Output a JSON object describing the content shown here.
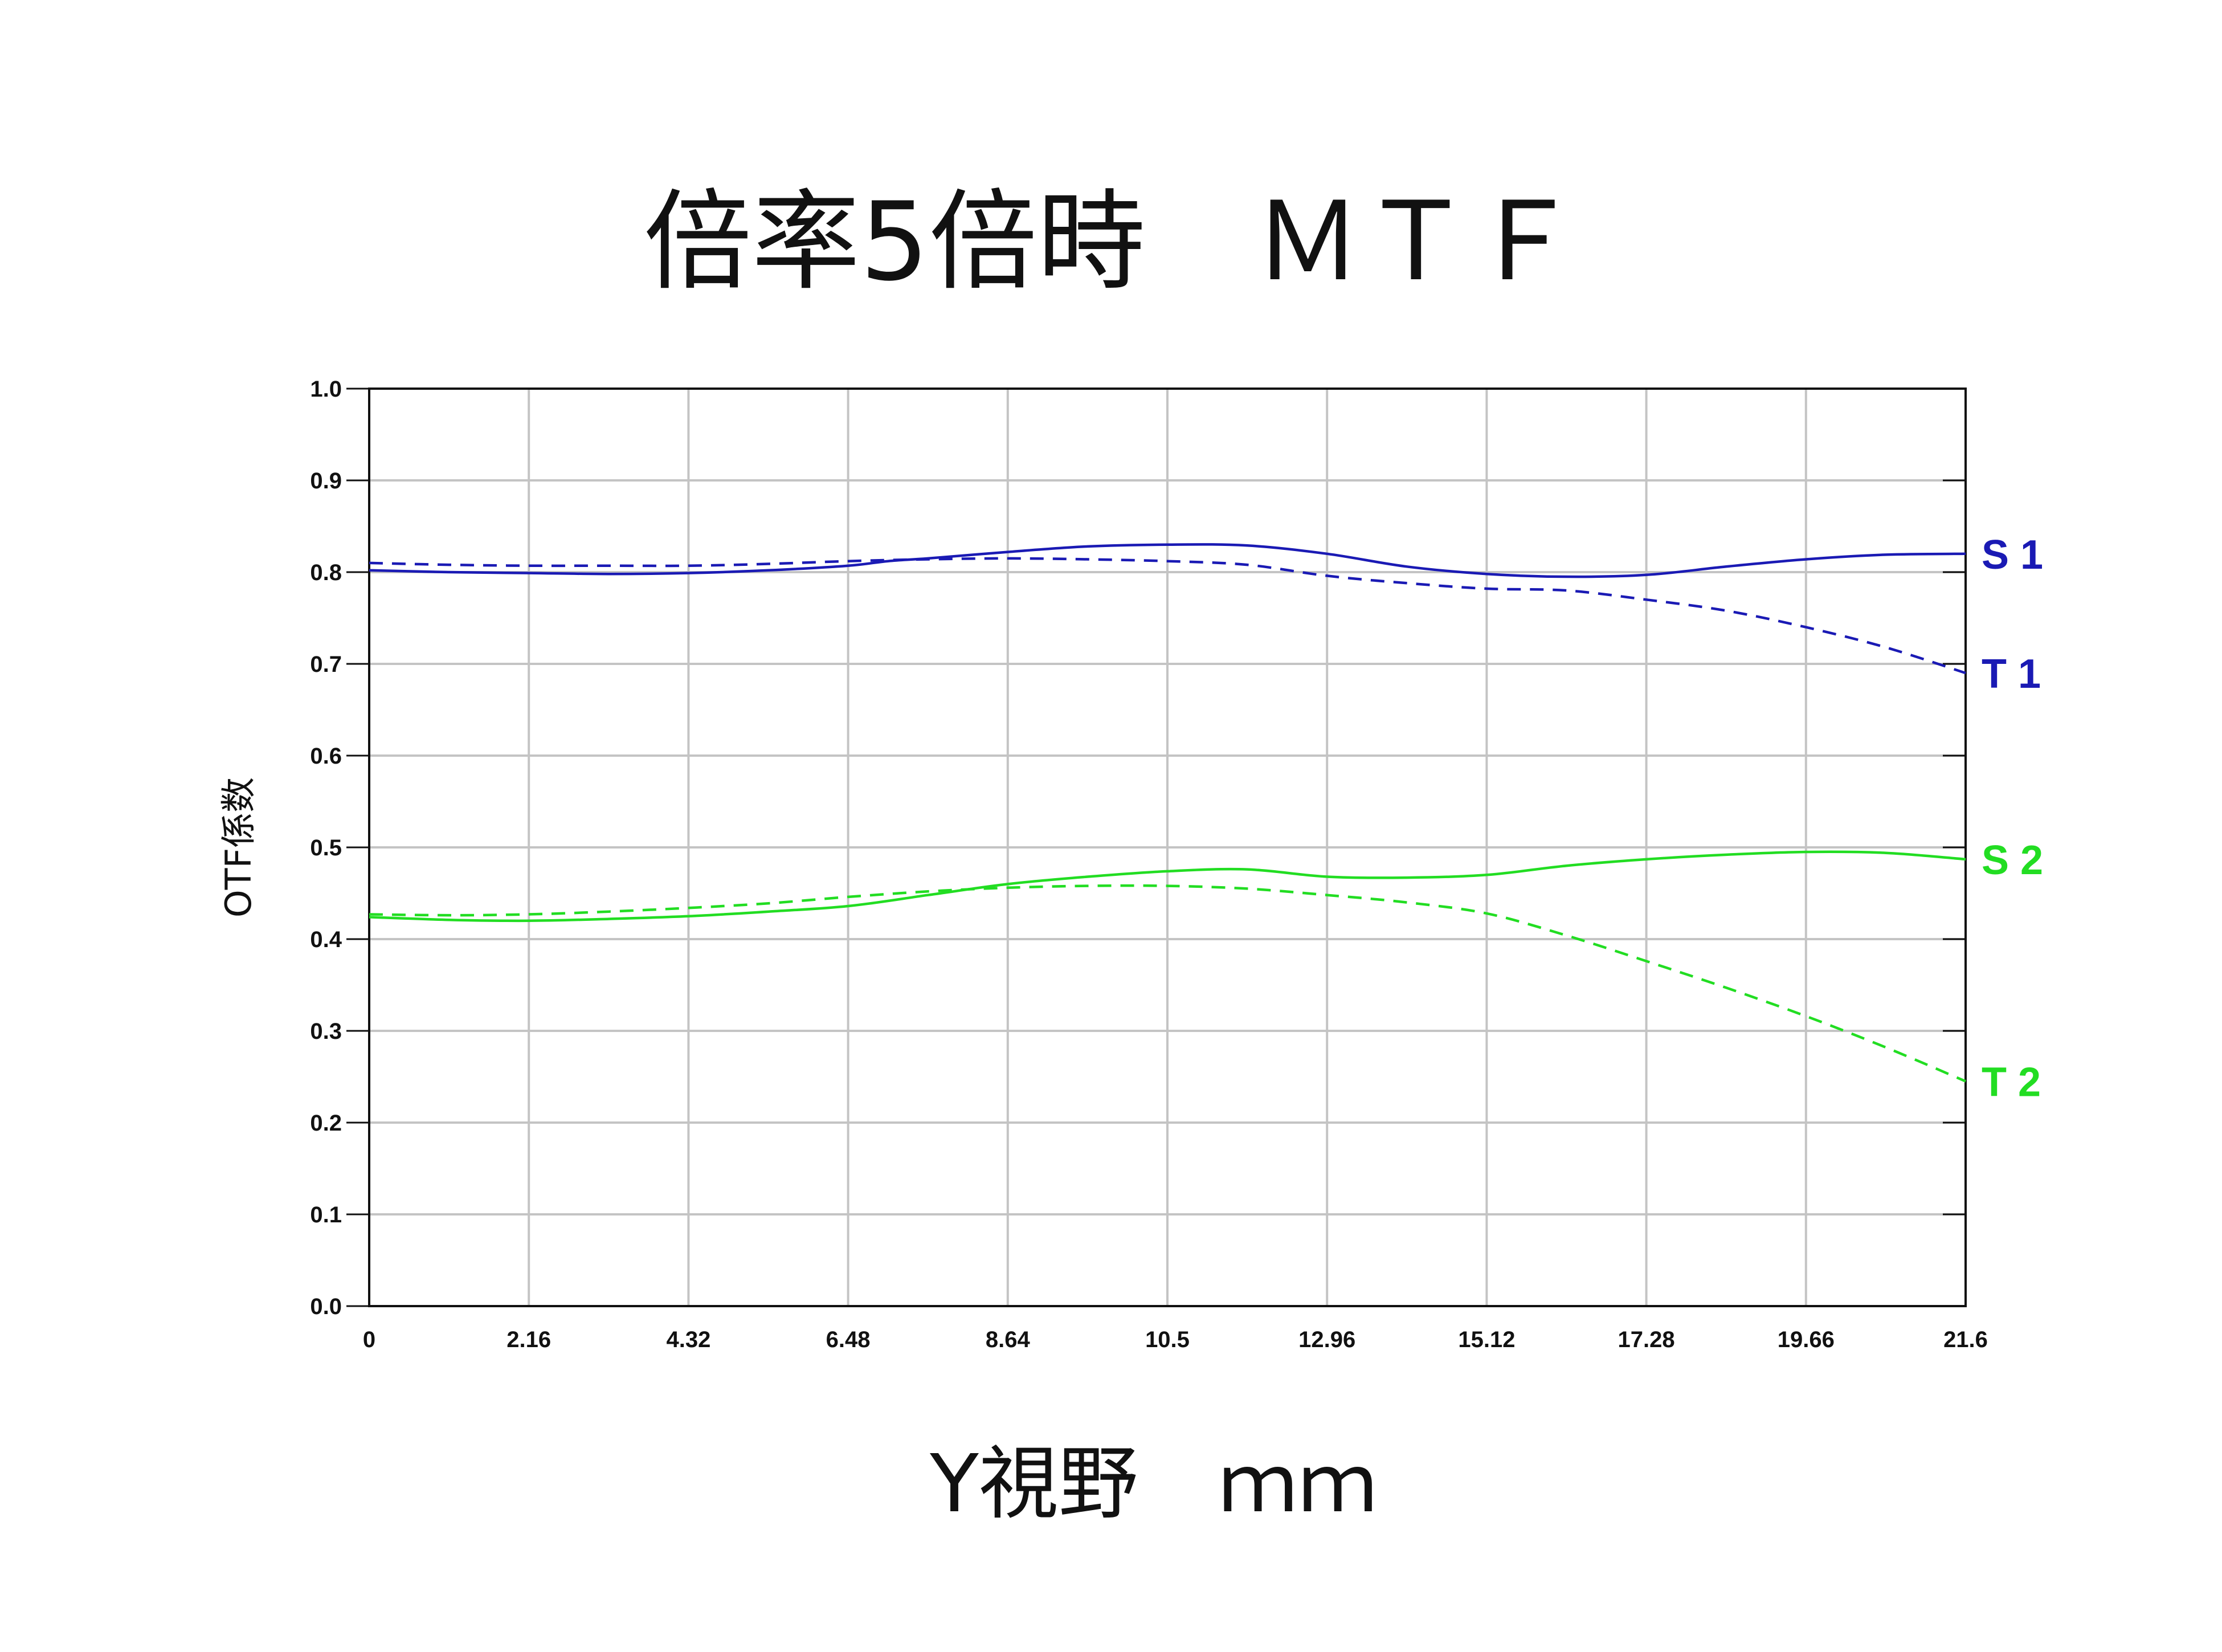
{
  "chart_data": {
    "type": "line",
    "title": "倍率5倍時　ＭＴＦ",
    "xlabel": "Y視野　ｍｍ",
    "ylabel": "OTF係数",
    "x_ticks": [
      "0",
      "2.16",
      "4.32",
      "6.48",
      "8.64",
      "10.5",
      "12.96",
      "15.12",
      "17.28",
      "19.66",
      "21.6"
    ],
    "y_ticks": [
      "0.0",
      "0.1",
      "0.2",
      "0.3",
      "0.4",
      "0.5",
      "0.6",
      "0.7",
      "0.8",
      "0.9",
      "1.0"
    ],
    "xlim": [
      0,
      21.6
    ],
    "ylim": [
      0,
      1.0
    ],
    "grid": true,
    "series": [
      {
        "name": "S 1",
        "color": "#1a1ab4",
        "style": "solid",
        "x": [
          0,
          1.08,
          2.16,
          3.24,
          4.32,
          5.4,
          6.48,
          7.02,
          7.56,
          8.64,
          9.72,
          10.8,
          11.88,
          12.96,
          14.04,
          15.12,
          16.2,
          17.28,
          18.36,
          19.44,
          20.52,
          21.6
        ],
        "y": [
          0.802,
          0.8,
          0.799,
          0.798,
          0.799,
          0.802,
          0.807,
          0.812,
          0.815,
          0.822,
          0.828,
          0.83,
          0.829,
          0.82,
          0.806,
          0.798,
          0.795,
          0.797,
          0.806,
          0.814,
          0.819,
          0.82
        ]
      },
      {
        "name": "T 1",
        "color": "#1a1ab4",
        "style": "dashed",
        "x": [
          0,
          1.08,
          2.16,
          3.24,
          4.32,
          5.4,
          6.48,
          7.56,
          8.64,
          9.72,
          10.8,
          11.88,
          12.96,
          14.04,
          15.12,
          16.2,
          17.28,
          18.36,
          19.44,
          20.52,
          21.6
        ],
        "y": [
          0.81,
          0.808,
          0.807,
          0.807,
          0.807,
          0.809,
          0.812,
          0.814,
          0.815,
          0.814,
          0.812,
          0.808,
          0.796,
          0.788,
          0.782,
          0.78,
          0.77,
          0.758,
          0.74,
          0.718,
          0.69
        ]
      },
      {
        "name": "S 2",
        "color": "#22dd22",
        "style": "solid",
        "x": [
          0,
          1.08,
          2.16,
          3.24,
          4.32,
          5.4,
          6.48,
          7.56,
          8.64,
          9.72,
          10.8,
          11.88,
          12.96,
          14.04,
          15.12,
          16.2,
          17.28,
          18.36,
          19.44,
          20.52,
          21.6
        ],
        "y": [
          0.424,
          0.421,
          0.42,
          0.422,
          0.425,
          0.43,
          0.436,
          0.448,
          0.46,
          0.468,
          0.474,
          0.476,
          0.468,
          0.467,
          0.47,
          0.48,
          0.487,
          0.492,
          0.495,
          0.494,
          0.487
        ]
      },
      {
        "name": "T 2",
        "color": "#22dd22",
        "style": "dashed",
        "x": [
          0,
          1.08,
          2.16,
          3.24,
          4.32,
          5.4,
          6.48,
          7.56,
          8.64,
          9.72,
          10.8,
          11.88,
          12.96,
          14.04,
          15.12,
          16.2,
          17.28,
          18.36,
          19.44,
          20.52,
          21.6
        ],
        "y": [
          0.427,
          0.426,
          0.427,
          0.43,
          0.434,
          0.439,
          0.446,
          0.452,
          0.456,
          0.458,
          0.458,
          0.455,
          0.448,
          0.44,
          0.428,
          0.404,
          0.376,
          0.347,
          0.316,
          0.282,
          0.245
        ]
      }
    ]
  }
}
